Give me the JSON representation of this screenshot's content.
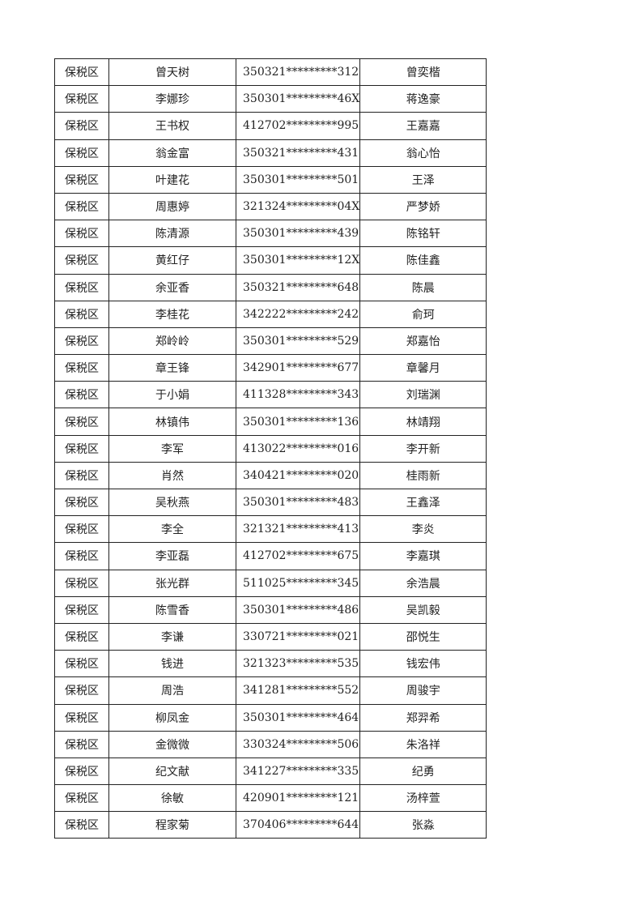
{
  "table": {
    "rows": [
      [
        "保税区",
        "曾天树",
        "350321*********312",
        "曾奕楷"
      ],
      [
        "保税区",
        "李娜珍",
        "350301*********46X",
        "蒋逸豪"
      ],
      [
        "保税区",
        "王书权",
        "412702*********995",
        "王嘉嘉"
      ],
      [
        "保税区",
        "翁金富",
        "350321*********431",
        "翁心怡"
      ],
      [
        "保税区",
        "叶建花",
        "350301*********501",
        "王泽"
      ],
      [
        "保税区",
        "周惠婷",
        "321324*********04X",
        "严梦娇"
      ],
      [
        "保税区",
        "陈清源",
        "350301*********439",
        "陈铭轩"
      ],
      [
        "保税区",
        "黄红仔",
        "350301*********12X",
        "陈佳鑫"
      ],
      [
        "保税区",
        "余亚香",
        "350321*********648",
        "陈晨"
      ],
      [
        "保税区",
        "李桂花",
        "342222*********242",
        "俞珂"
      ],
      [
        "保税区",
        "郑岭岭",
        "350301*********529",
        "郑嘉怡"
      ],
      [
        "保税区",
        "章王锋",
        "342901*********677",
        "章馨月"
      ],
      [
        "保税区",
        "于小娟",
        "411328*********343",
        "刘瑞渊"
      ],
      [
        "保税区",
        "林镇伟",
        "350301*********136",
        "林靖翔"
      ],
      [
        "保税区",
        "李军",
        "413022*********016",
        "李开新"
      ],
      [
        "保税区",
        "肖然",
        "340421*********020",
        "桂雨新"
      ],
      [
        "保税区",
        "吴秋燕",
        "350301*********483",
        "王鑫泽"
      ],
      [
        "保税区",
        "李全",
        "321321*********413",
        "李炎"
      ],
      [
        "保税区",
        "李亚磊",
        "412702*********675",
        "李嘉琪"
      ],
      [
        "保税区",
        "张光群",
        "511025*********345",
        "余浩晨"
      ],
      [
        "保税区",
        "陈雪香",
        "350301*********486",
        "吴凯毅"
      ],
      [
        "保税区",
        "李谦",
        "330721*********021",
        "邵悦生"
      ],
      [
        "保税区",
        "钱进",
        "321323*********535",
        "钱宏伟"
      ],
      [
        "保税区",
        "周浩",
        "341281*********552",
        "周骏宇"
      ],
      [
        "保税区",
        "柳凤金",
        "350301*********464",
        "郑羿希"
      ],
      [
        "保税区",
        "金微微",
        "330324*********506",
        "朱洛祥"
      ],
      [
        "保税区",
        "纪文献",
        "341227*********335",
        "纪勇"
      ],
      [
        "保税区",
        "徐敏",
        "420901*********121",
        "汤梓萱"
      ],
      [
        "保税区",
        "程家菊",
        "370406*********644",
        "张淼"
      ]
    ]
  }
}
